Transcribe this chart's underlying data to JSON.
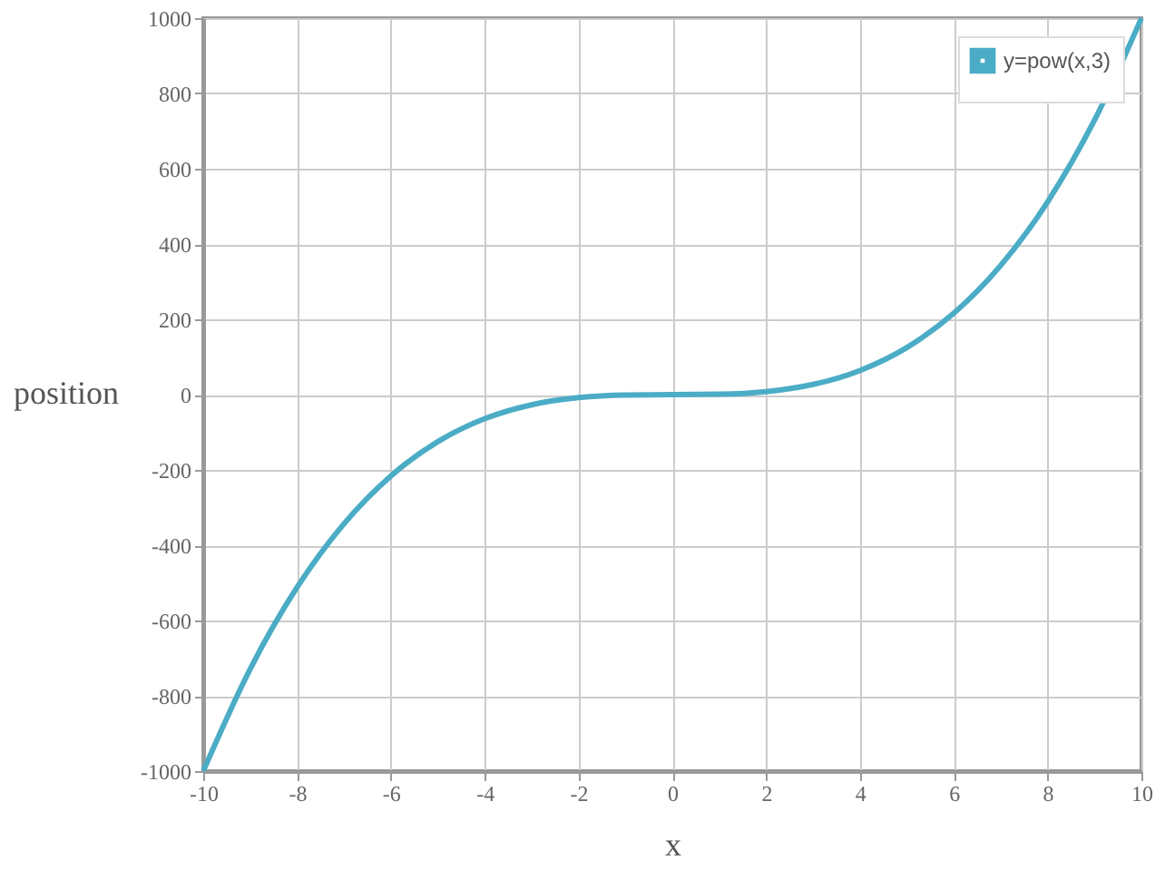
{
  "chart_data": {
    "type": "line",
    "xlabel": "x",
    "ylabel": "position",
    "x": [
      -10,
      -9,
      -8,
      -7,
      -6,
      -5,
      -4,
      -3,
      -2,
      -1,
      0,
      1,
      2,
      3,
      4,
      5,
      6,
      7,
      8,
      9,
      10
    ],
    "series": [
      {
        "name": "y=pow(x,3)",
        "color": "#4bacc6",
        "values": [
          -1000,
          -729,
          -512,
          -343,
          -216,
          -125,
          -64,
          -27,
          -8,
          -1,
          0,
          1,
          8,
          27,
          64,
          125,
          216,
          343,
          512,
          729,
          1000
        ]
      }
    ],
    "xlim": [
      -10,
      10
    ],
    "xticks": [
      -10,
      -8,
      -6,
      -4,
      -2,
      0,
      2,
      4,
      6,
      8,
      10
    ],
    "ylim": [
      -1000,
      1000
    ],
    "yticks": [
      -1000,
      -800,
      -600,
      -400,
      -200,
      0,
      200,
      400,
      600,
      800,
      1000
    ],
    "grid": true,
    "legend": "top right",
    "marker": "none",
    "line_style": "solid"
  }
}
